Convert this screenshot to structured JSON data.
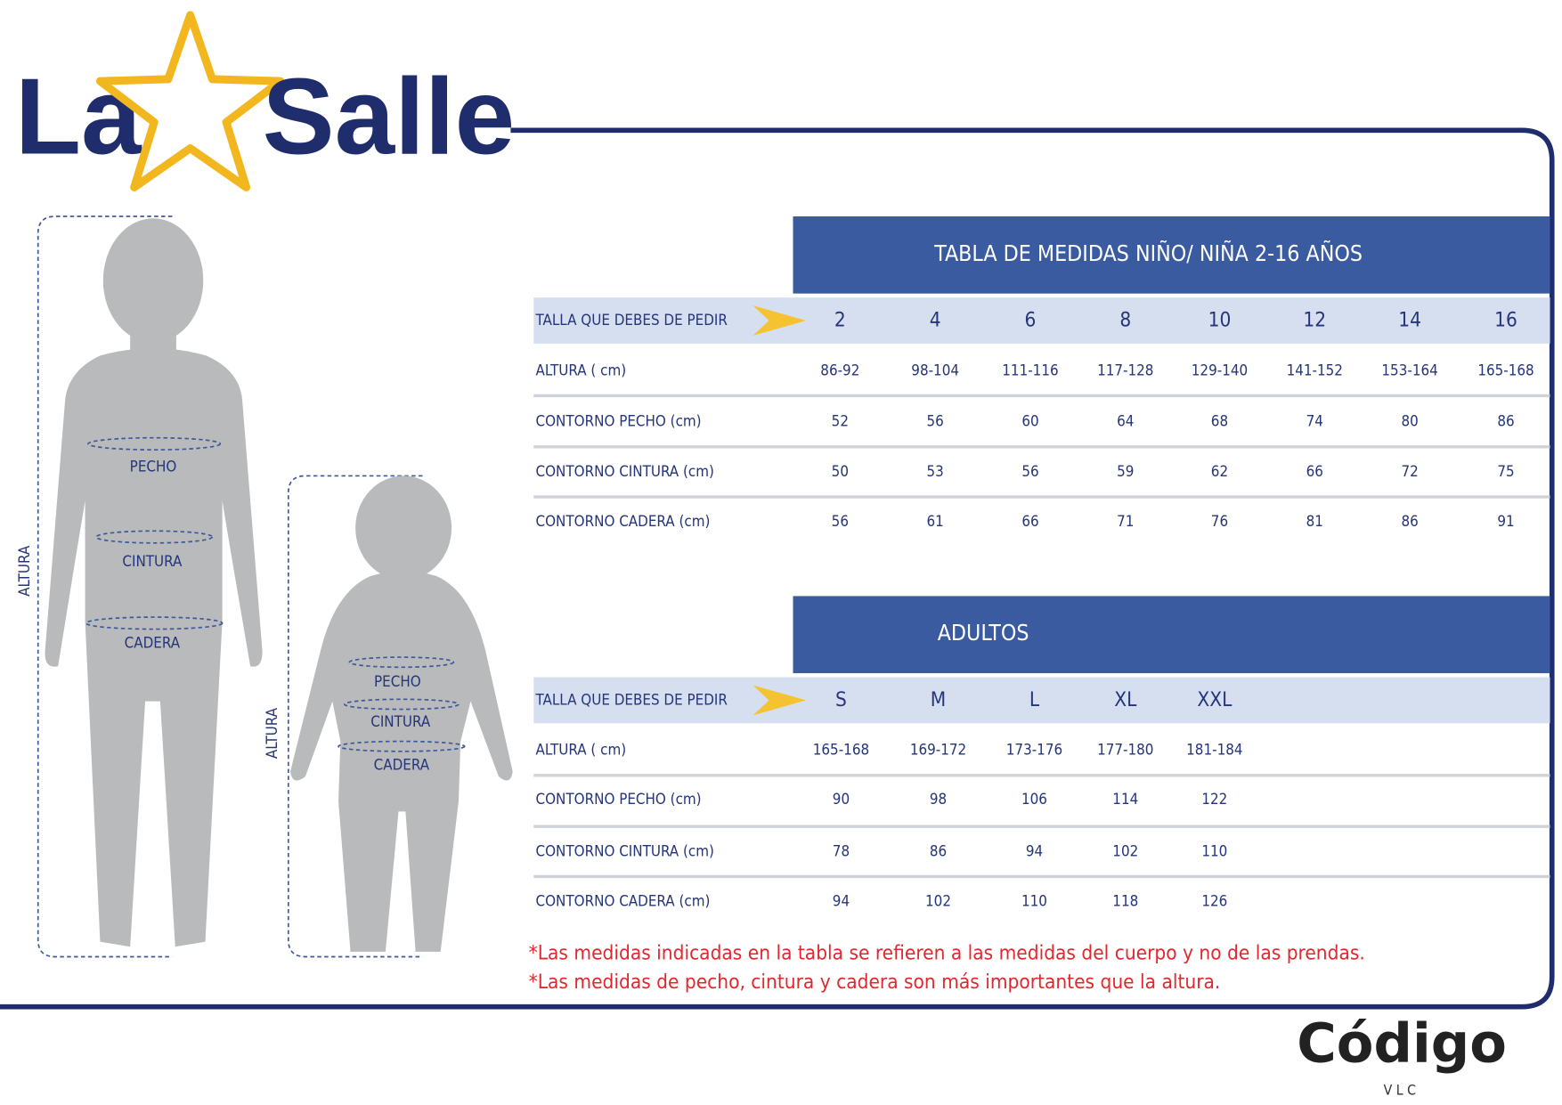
{
  "logo": {
    "left": "La",
    "right": "Salle"
  },
  "figures": [
    {
      "height_label": "ALTURA",
      "chest": "PECHO",
      "waist": "CINTURA",
      "hip": "CADERA"
    },
    {
      "height_label": "ALTURA",
      "chest": "PECHO",
      "waist": "CINTURA",
      "hip": "CADERA"
    }
  ],
  "tables": [
    {
      "title": "TABLA DE MEDIDAS NIÑO/ NIÑA 2-16  AÑOS",
      "header": [
        "TALLA QUE DEBES DE PEDIR",
        "2",
        "4",
        "6",
        "8",
        "10",
        "12",
        "14",
        "16"
      ],
      "rows": [
        [
          "ALTURA ( cm)",
          "86-92",
          "98-104",
          "111-116",
          "117-128",
          "129-140",
          "141-152",
          "153-164",
          "165-168"
        ],
        [
          "CONTORNO PECHO (cm)",
          "52",
          "56",
          "60",
          "64",
          "68",
          "74",
          "80",
          "86"
        ],
        [
          "CONTORNO CINTURA (cm)",
          "50",
          "53",
          "56",
          "59",
          "62",
          "66",
          "72",
          "75"
        ],
        [
          "CONTORNO CADERA  (cm)",
          "56",
          "61",
          "66",
          "71",
          "76",
          "81",
          "86",
          "91"
        ]
      ]
    },
    {
      "title": "ADULTOS",
      "header": [
        "TALLA QUE DEBES DE PEDIR",
        "S",
        "M",
        "L",
        "XL",
        "XXL"
      ],
      "rows": [
        [
          "ALTURA ( cm)",
          "165-168",
          "169-172",
          "173-176",
          "177-180",
          "181-184"
        ],
        [
          "CONTORNO PECHO (cm)",
          "90",
          "98",
          "106",
          "114",
          "122"
        ],
        [
          "CONTORNO CINTURA (cm)",
          "78",
          "86",
          "94",
          "102",
          "110"
        ],
        [
          "CONTORNO CADERA  (cm)",
          "94",
          "102",
          "110",
          "118",
          "126"
        ]
      ]
    }
  ],
  "notes": [
    "*Las medidas indicadas en la tabla se refieren a las medidas del cuerpo y no de las prendas.",
    "*Las medidas de pecho, cintura y cadera son más importantes que la altura."
  ],
  "footer": {
    "brand": "Código",
    "sub": "VLC"
  }
}
